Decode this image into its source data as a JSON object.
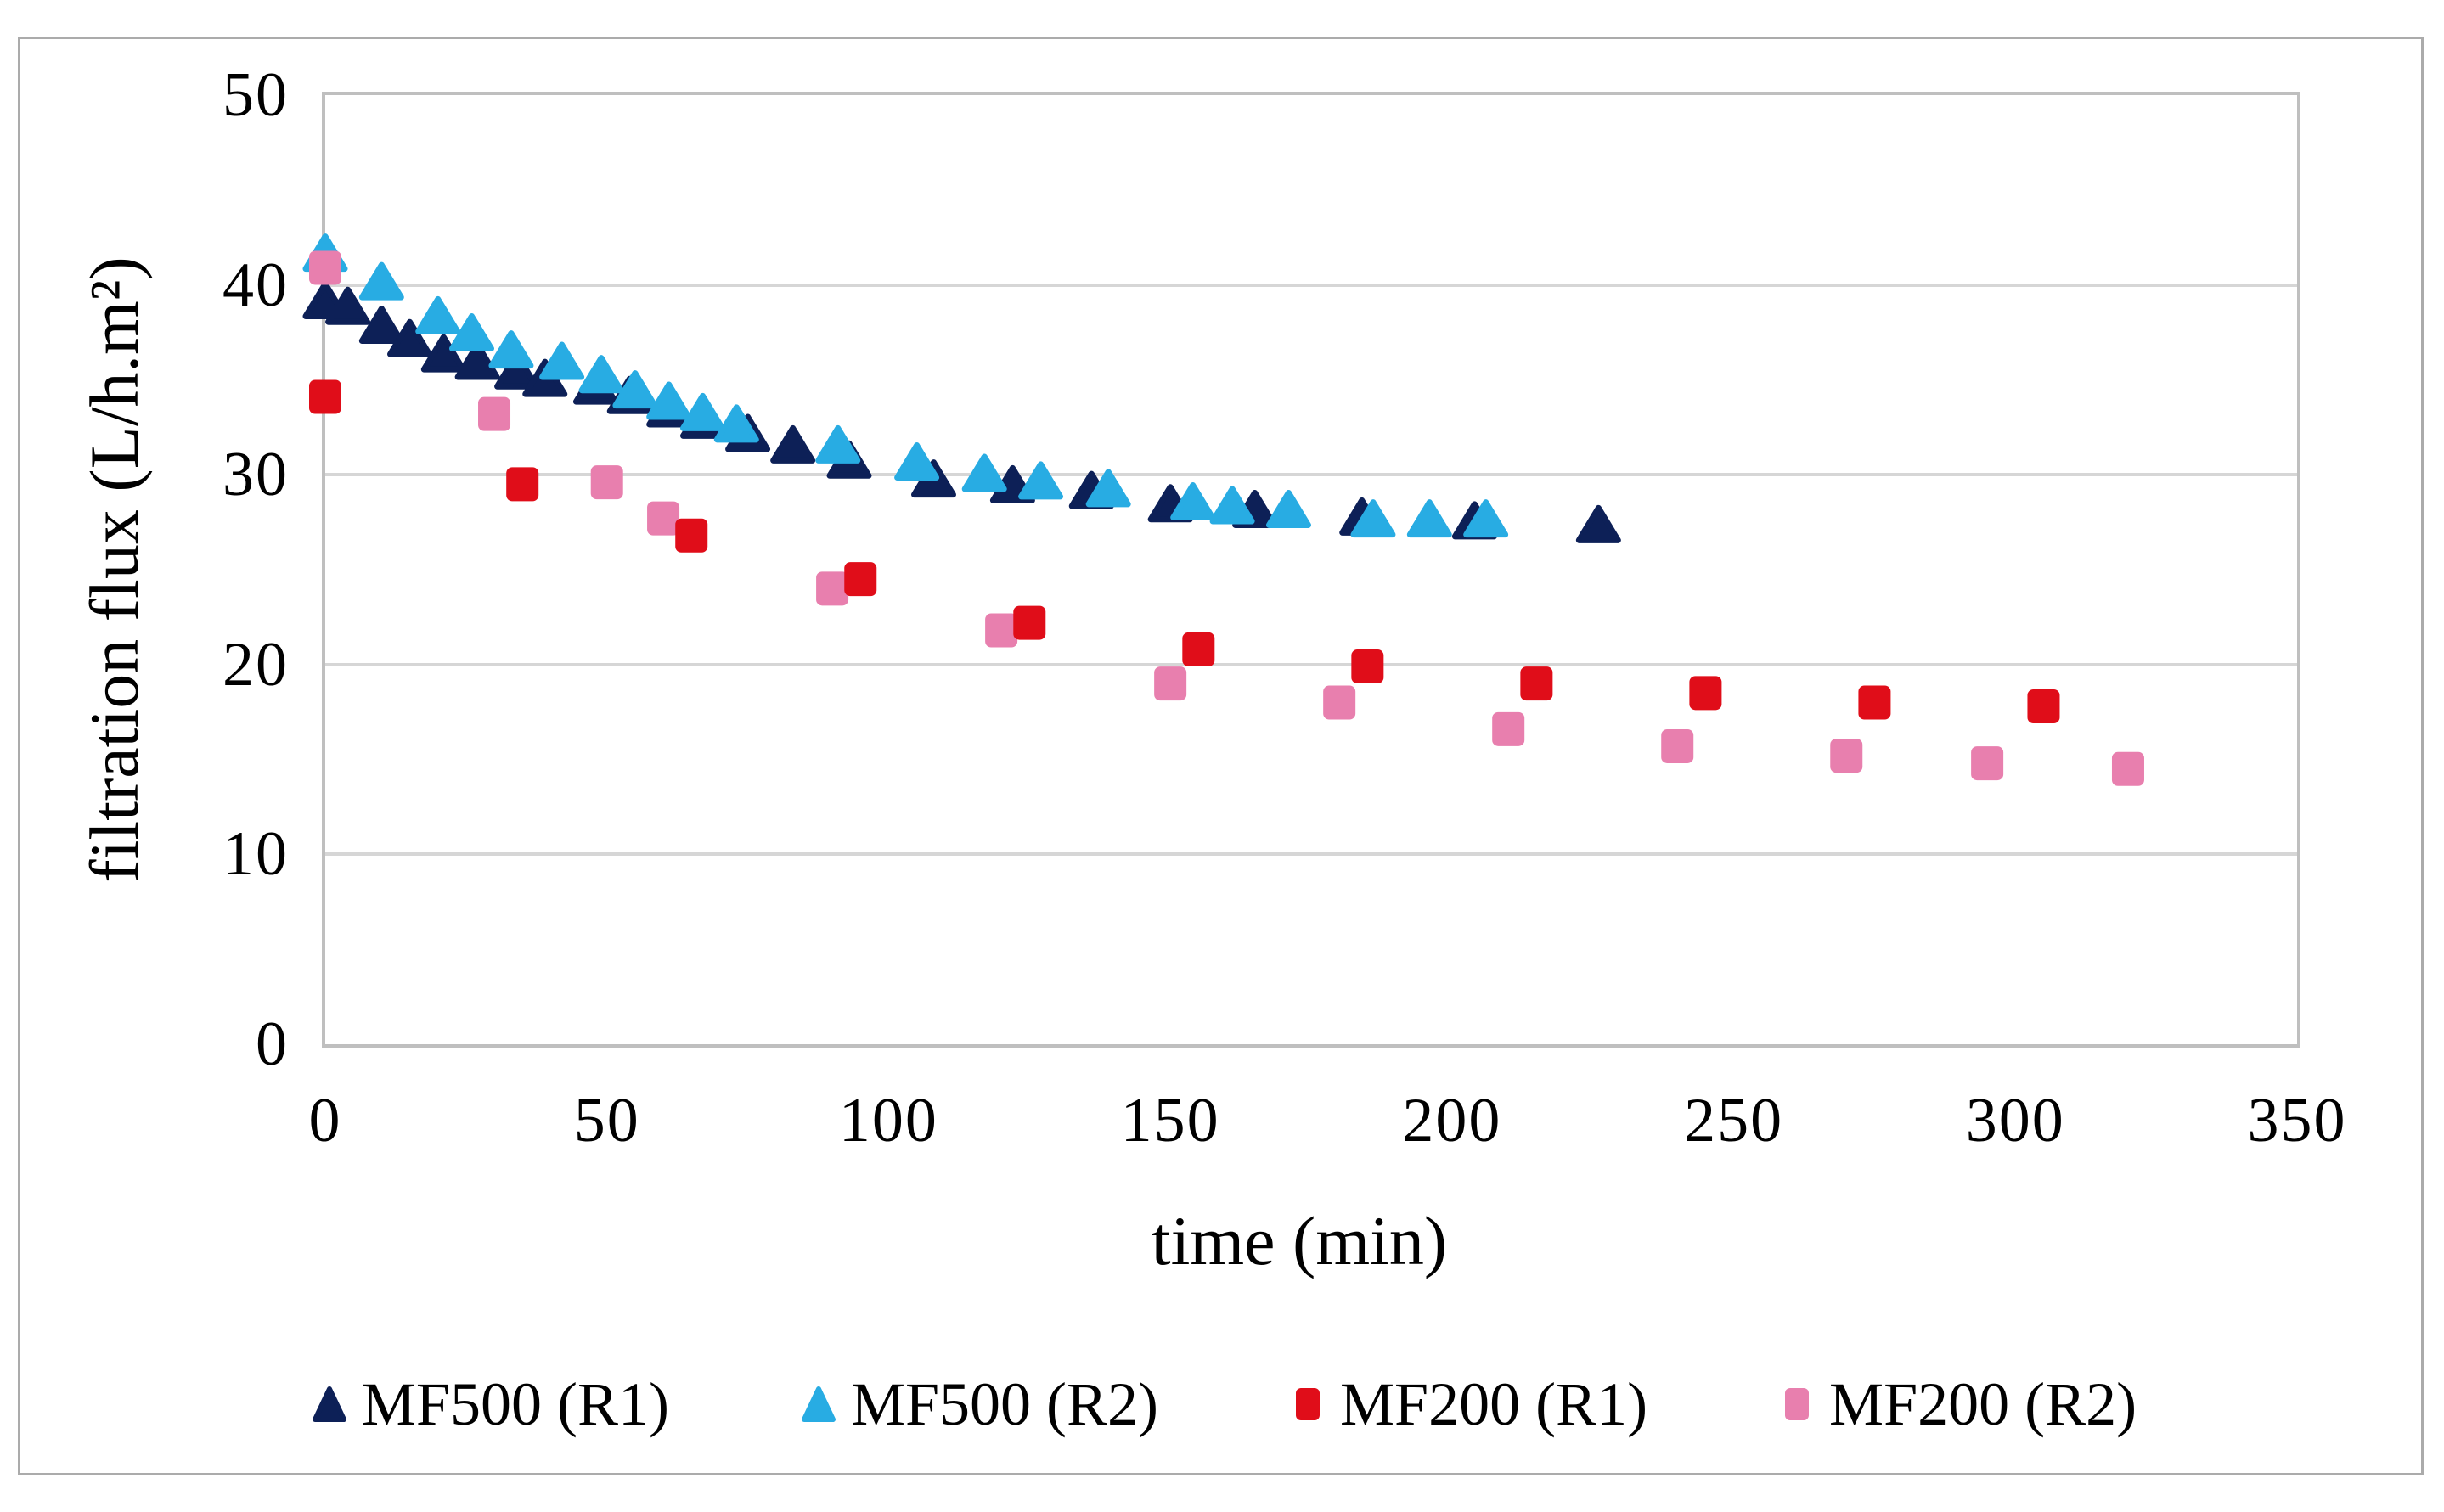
{
  "figure": {
    "y_axis_title": "filtration flux (L/h.m²)",
    "x_axis_title": "time (min)"
  },
  "chart_data": {
    "type": "scatter",
    "title": "",
    "xlabel": "time (min)",
    "ylabel": "filtration flux (L/h.m²)",
    "xlim": [
      0,
      350
    ],
    "ylim": [
      0,
      50
    ],
    "xticks": [
      0,
      50,
      100,
      150,
      200,
      250,
      300,
      350
    ],
    "yticks": [
      0,
      10,
      20,
      30,
      40,
      50
    ],
    "grid": "horizontal-only",
    "legend_position": "bottom",
    "colors": {
      "gridline": "#d6d6d6",
      "plot_border": "#bfbfbf",
      "figure_border": "#ababab",
      "text": "#000000"
    },
    "series": [
      {
        "name": "MF500 (R1)",
        "marker": "triangle",
        "color": "#0d2057",
        "points": [
          [
            0,
            39.2
          ],
          [
            4,
            38.9
          ],
          [
            10,
            37.9
          ],
          [
            15,
            37.2
          ],
          [
            21,
            36.4
          ],
          [
            27,
            36.0
          ],
          [
            34,
            35.5
          ],
          [
            39,
            35.1
          ],
          [
            48,
            34.7
          ],
          [
            54,
            34.2
          ],
          [
            61,
            33.5
          ],
          [
            67,
            32.9
          ],
          [
            75,
            32.2
          ],
          [
            83,
            31.6
          ],
          [
            93,
            30.8
          ],
          [
            108,
            29.8
          ],
          [
            122,
            29.5
          ],
          [
            136,
            29.2
          ],
          [
            150,
            28.5
          ],
          [
            165,
            28.2
          ],
          [
            184,
            27.8
          ],
          [
            204,
            27.6
          ],
          [
            226,
            27.4
          ]
        ]
      },
      {
        "name": "MF500 (R2)",
        "marker": "triangle",
        "color": "#28ace3",
        "points": [
          [
            0,
            41.7
          ],
          [
            10,
            40.2
          ],
          [
            20,
            38.4
          ],
          [
            26,
            37.5
          ],
          [
            33,
            36.6
          ],
          [
            42,
            36.0
          ],
          [
            49,
            35.3
          ],
          [
            55,
            34.5
          ],
          [
            61,
            33.9
          ],
          [
            67,
            33.3
          ],
          [
            73,
            32.7
          ],
          [
            91,
            31.6
          ],
          [
            105,
            30.7
          ],
          [
            117,
            30.1
          ],
          [
            127,
            29.7
          ],
          [
            139,
            29.3
          ],
          [
            154,
            28.6
          ],
          [
            161,
            28.4
          ],
          [
            171,
            28.2
          ],
          [
            186,
            27.7
          ],
          [
            196,
            27.7
          ],
          [
            206,
            27.7
          ]
        ]
      },
      {
        "name": "MF200 (R1)",
        "marker": "square",
        "color": "#e00d19",
        "points": [
          [
            0,
            34.1
          ],
          [
            35,
            29.5
          ],
          [
            65,
            26.8
          ],
          [
            95,
            24.5
          ],
          [
            125,
            22.2
          ],
          [
            155,
            20.8
          ],
          [
            185,
            19.9
          ],
          [
            215,
            19.0
          ],
          [
            245,
            18.5
          ],
          [
            275,
            18.0
          ],
          [
            305,
            17.8
          ]
        ]
      },
      {
        "name": "MF200 (R2)",
        "marker": "square",
        "color": "#e87fae",
        "points": [
          [
            0,
            40.9
          ],
          [
            30,
            33.2
          ],
          [
            50,
            29.6
          ],
          [
            60,
            27.7
          ],
          [
            90,
            24.0
          ],
          [
            120,
            21.8
          ],
          [
            150,
            19.0
          ],
          [
            180,
            18.0
          ],
          [
            210,
            16.6
          ],
          [
            240,
            15.7
          ],
          [
            270,
            15.2
          ],
          [
            295,
            14.8
          ],
          [
            320,
            14.5
          ]
        ]
      }
    ],
    "draw_order": [
      0,
      1,
      3,
      2
    ]
  }
}
